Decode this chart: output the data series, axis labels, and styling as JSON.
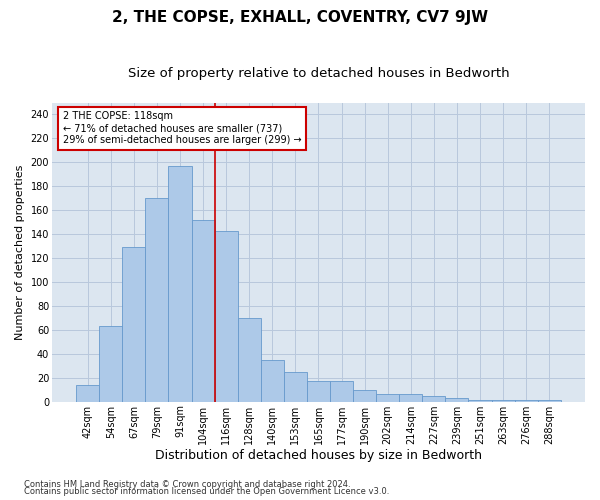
{
  "title": "2, THE COPSE, EXHALL, COVENTRY, CV7 9JW",
  "subtitle": "Size of property relative to detached houses in Bedworth",
  "xlabel": "Distribution of detached houses by size in Bedworth",
  "ylabel": "Number of detached properties",
  "categories": [
    "42sqm",
    "54sqm",
    "67sqm",
    "79sqm",
    "91sqm",
    "104sqm",
    "116sqm",
    "128sqm",
    "140sqm",
    "153sqm",
    "165sqm",
    "177sqm",
    "190sqm",
    "202sqm",
    "214sqm",
    "227sqm",
    "239sqm",
    "251sqm",
    "263sqm",
    "276sqm",
    "288sqm"
  ],
  "values": [
    14,
    63,
    129,
    170,
    197,
    152,
    143,
    70,
    35,
    25,
    17,
    17,
    10,
    6,
    6,
    5,
    3,
    1,
    1,
    1,
    1
  ],
  "bar_color": "#adc9e8",
  "bar_edge_color": "#6699cc",
  "property_line_x": 6.0,
  "annotation_line1": "2 THE COPSE: 118sqm",
  "annotation_line2": "← 71% of detached houses are smaller (737)",
  "annotation_line3": "29% of semi-detached houses are larger (299) →",
  "annotation_box_color": "#ffffff",
  "annotation_box_edge": "#cc0000",
  "vline_color": "#cc0000",
  "grid_color": "#b8c8dc",
  "bg_color": "#dce6f0",
  "footer1": "Contains HM Land Registry data © Crown copyright and database right 2024.",
  "footer2": "Contains public sector information licensed under the Open Government Licence v3.0.",
  "ylim": [
    0,
    250
  ],
  "yticks": [
    0,
    20,
    40,
    60,
    80,
    100,
    120,
    140,
    160,
    180,
    200,
    220,
    240
  ],
  "title_fontsize": 11,
  "subtitle_fontsize": 9.5,
  "xlabel_fontsize": 9,
  "ylabel_fontsize": 8,
  "tick_fontsize": 7,
  "annotation_fontsize": 7,
  "footer_fontsize": 6
}
